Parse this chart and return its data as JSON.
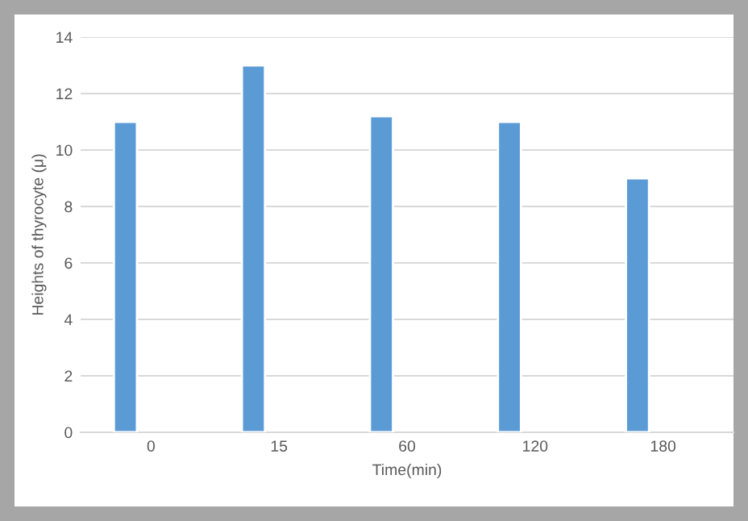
{
  "chart_data": {
    "type": "bar",
    "xlabel": "Time(min)",
    "ylabel": "Heights of thyrocyte (μ)",
    "categories": [
      "0",
      "15",
      "60",
      "120",
      "180"
    ],
    "values": [
      11,
      13,
      11.2,
      11,
      9
    ],
    "color": "#5b9bd5",
    "ylim": [
      0,
      14
    ],
    "yticks": [
      0,
      2,
      4,
      6,
      8,
      10,
      12,
      14
    ],
    "grid": "y",
    "legend": false
  }
}
